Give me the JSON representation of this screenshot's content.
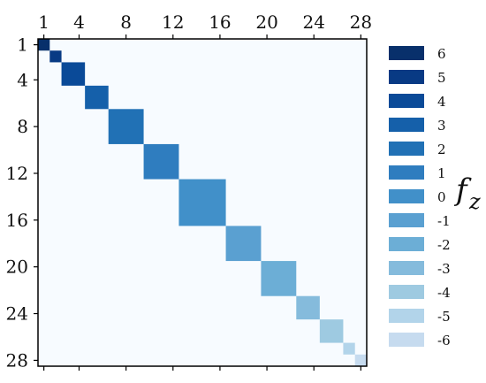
{
  "chart_data": {
    "type": "heatmap",
    "title": "",
    "x_ticks": [
      "1",
      "4",
      "8",
      "12",
      "16",
      "20",
      "24",
      "28"
    ],
    "y_ticks": [
      "1",
      "4",
      "8",
      "12",
      "16",
      "20",
      "24",
      "28"
    ],
    "tick_values": [
      1,
      4,
      8,
      12,
      16,
      20,
      24,
      28
    ],
    "range": [
      1,
      28
    ],
    "grid": false,
    "background_color": "#f7fbff",
    "blocks": [
      {
        "f_z": 6,
        "start": 1,
        "end": 1,
        "color": "#08306b"
      },
      {
        "f_z": 5,
        "start": 2,
        "end": 2,
        "color": "#083a84"
      },
      {
        "f_z": 4,
        "start": 3,
        "end": 4,
        "color": "#0a4a98"
      },
      {
        "f_z": 3,
        "start": 5,
        "end": 6,
        "color": "#1560aa"
      },
      {
        "f_z": 2,
        "start": 7,
        "end": 9,
        "color": "#2171b5"
      },
      {
        "f_z": 1,
        "start": 10,
        "end": 12,
        "color": "#2f7dbf"
      },
      {
        "f_z": 0,
        "start": 13,
        "end": 16,
        "color": "#4190c9"
      },
      {
        "f_z": -1,
        "start": 17,
        "end": 19,
        "color": "#5aa0d1"
      },
      {
        "f_z": -2,
        "start": 20,
        "end": 22,
        "color": "#6caed6"
      },
      {
        "f_z": -3,
        "start": 23,
        "end": 24,
        "color": "#85bbdc"
      },
      {
        "f_z": -4,
        "start": 25,
        "end": 26,
        "color": "#9ecae1"
      },
      {
        "f_z": -5,
        "start": 27,
        "end": 27,
        "color": "#b2d4ea"
      },
      {
        "f_z": -6,
        "start": 28,
        "end": 28,
        "color": "#c6dbef"
      }
    ],
    "legend": {
      "title": "f",
      "title_sub": "z",
      "placement": "right",
      "entries": [
        {
          "label": "6",
          "color": "#08306b"
        },
        {
          "label": "5",
          "color": "#083a84"
        },
        {
          "label": "4",
          "color": "#0a4a98"
        },
        {
          "label": "3",
          "color": "#1560aa"
        },
        {
          "label": "2",
          "color": "#2171b5"
        },
        {
          "label": "1",
          "color": "#2f7dbf"
        },
        {
          "label": "0",
          "color": "#4190c9"
        },
        {
          "label": "-1",
          "color": "#5aa0d1"
        },
        {
          "label": "-2",
          "color": "#6caed6"
        },
        {
          "label": "-3",
          "color": "#85bbdc"
        },
        {
          "label": "-4",
          "color": "#9ecae1"
        },
        {
          "label": "-5",
          "color": "#b2d4ea"
        },
        {
          "label": "-6",
          "color": "#c6dbef"
        }
      ]
    }
  }
}
